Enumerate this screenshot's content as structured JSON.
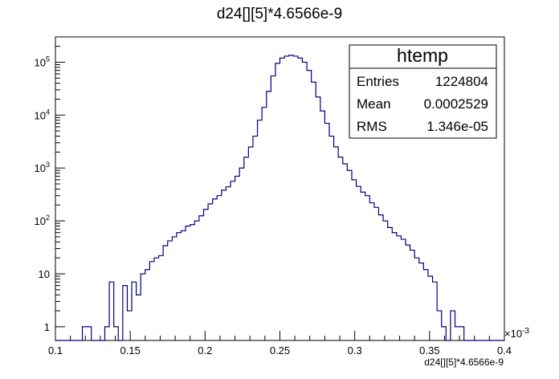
{
  "chart_data": {
    "type": "histogram",
    "title": "d24[][5]*4.6566e-9",
    "xlabel": "d24[][5]*4.6566e-9",
    "x_multiplier_label": "×10",
    "x_multiplier_exp": "-3",
    "xlim": [
      0.1,
      0.4
    ],
    "ylim": [
      0.55,
      300000
    ],
    "y_scale": "log",
    "x_ticks": [
      "0.1",
      "0.15",
      "0.2",
      "0.25",
      "0.3",
      "0.35",
      "0.4"
    ],
    "y_ticks": [
      {
        "base": "1",
        "exp": ""
      },
      {
        "base": "10",
        "exp": ""
      },
      {
        "base": "10",
        "exp": "2"
      },
      {
        "base": "10",
        "exp": "3"
      },
      {
        "base": "10",
        "exp": "4"
      },
      {
        "base": "10",
        "exp": "5"
      }
    ],
    "bin_start": 0.1,
    "bin_width": 0.003,
    "line_color": "#000080",
    "values": [
      0,
      0,
      0,
      0,
      0,
      0,
      1,
      1,
      0,
      0,
      0,
      1,
      7,
      1,
      0,
      6,
      2,
      7,
      4,
      10,
      12,
      17,
      20,
      22,
      34,
      42,
      50,
      60,
      65,
      80,
      85,
      100,
      125,
      165,
      210,
      260,
      300,
      380,
      440,
      560,
      700,
      1000,
      1600,
      2500,
      4000,
      8000,
      14000,
      28000,
      55000,
      95000,
      120000,
      130000,
      135000,
      130000,
      120000,
      100000,
      70000,
      42000,
      22000,
      12000,
      7000,
      4000,
      2500,
      1600,
      1200,
      900,
      600,
      450,
      350,
      300,
      220,
      180,
      130,
      100,
      75,
      60,
      52,
      45,
      35,
      28,
      20,
      16,
      12,
      9,
      7,
      2,
      1,
      0,
      2,
      1,
      1,
      0,
      0,
      0,
      0,
      0,
      0,
      0,
      0,
      0
    ]
  },
  "stats": {
    "title": "htemp",
    "rows": [
      {
        "label": "Entries",
        "value": "1224804"
      },
      {
        "label": "Mean",
        "value": "0.0002529"
      },
      {
        "label": "RMS",
        "value": "1.346e-05"
      }
    ]
  }
}
